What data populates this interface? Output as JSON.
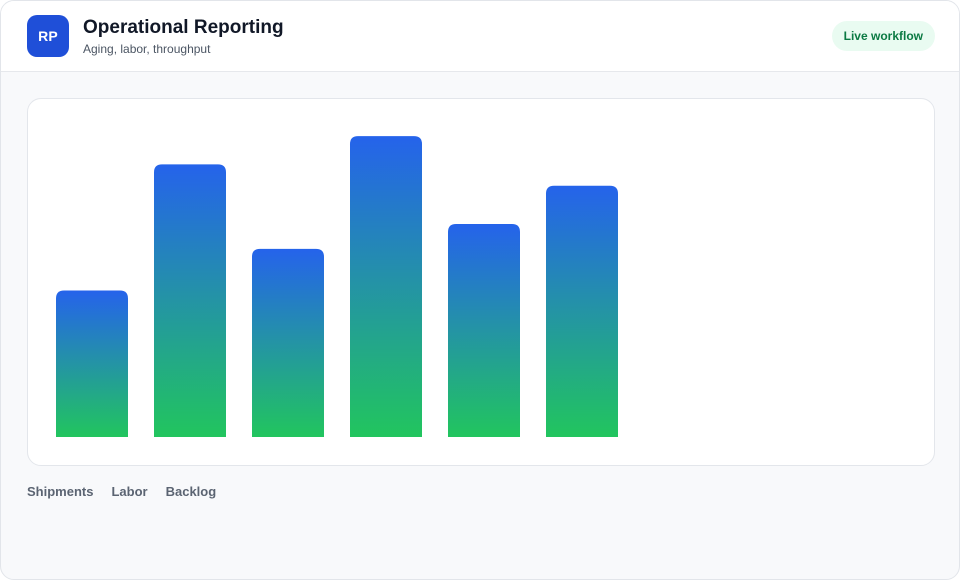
{
  "header": {
    "logo_text": "RP",
    "title": "Operational Reporting",
    "subtitle": "Aging, labor, throughput",
    "badge": "Live workflow"
  },
  "legend": {
    "items": [
      "Shipments",
      "Labor",
      "Backlog"
    ]
  },
  "colors": {
    "bar_top": "#2563eb",
    "bar_bottom": "#22c55e",
    "badge_bg": "#e9fbf1",
    "badge_text": "#0b7a43",
    "logo_bg": "#1f4fd8"
  },
  "chart_data": {
    "type": "bar",
    "categories": [
      "",
      "",
      "",
      "",
      "",
      ""
    ],
    "values": [
      130,
      242,
      167,
      267,
      189,
      223
    ],
    "ylim": [
      0,
      300
    ],
    "grid": false,
    "title": "",
    "xlabel": "",
    "ylabel": ""
  }
}
